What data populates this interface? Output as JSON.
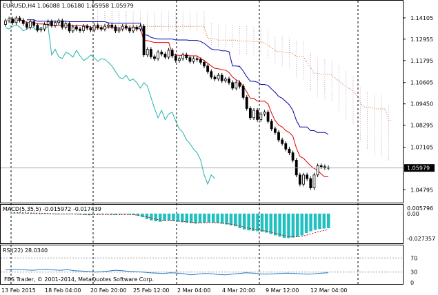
{
  "chart_data": [
    {
      "type": "candlestick",
      "title": "EURUSD,H4  1.06088 1.06180 1.05958 1.05979",
      "symbol": "EURUSD,H4",
      "ohlc_header": [
        "1.06088",
        "1.06180",
        "1.05958",
        "1.05979"
      ],
      "current_price_label": "1.05979",
      "y_tick_labels": [
        "1.14105",
        "1.12955",
        "1.11795",
        "1.10605",
        "1.09450",
        "1.08295",
        "1.07105",
        "1.04795"
      ],
      "ylim": [
        1.0425,
        1.1485
      ],
      "x_tick_labels": [
        "13 Feb 2015",
        "18 Feb 04:00",
        "20 Feb 20:00",
        "25 Feb 12:00",
        "2 Mar 04:00",
        "4 Mar 20:00",
        "9 Mar 12:00",
        "12 Mar 04:00"
      ],
      "grid": "vertical dashed",
      "closes": [
        1.1395,
        1.1405,
        1.1385,
        1.141,
        1.1398,
        1.138,
        1.136,
        1.139,
        1.137,
        1.1345,
        1.135,
        1.1375,
        1.139,
        1.137,
        1.1385,
        1.1395,
        1.136,
        1.138,
        1.134,
        1.1362,
        1.135,
        1.1342,
        1.1365,
        1.1355,
        1.1345,
        1.137,
        1.1358,
        1.135,
        1.1365,
        1.1372,
        1.1362,
        1.134,
        1.135,
        1.1365,
        1.1355,
        1.134,
        1.136,
        1.135,
        1.1365,
        1.121,
        1.124,
        1.12,
        1.119,
        1.1225,
        1.1215,
        1.1198,
        1.1235,
        1.1205,
        1.118,
        1.119,
        1.121,
        1.1195,
        1.1175,
        1.119,
        1.1185,
        1.117,
        1.115,
        1.112,
        1.109,
        1.108,
        1.11,
        1.107,
        1.108,
        1.106,
        1.103,
        1.106,
        1.104,
        1.098,
        1.092,
        1.087,
        1.091,
        1.086,
        1.089,
        1.09,
        1.085,
        1.081,
        1.079,
        1.075,
        1.073,
        1.07,
        1.068,
        1.064,
        1.056,
        1.051,
        1.056,
        1.054,
        1.049,
        1.056,
        1.061,
        1.0605,
        1.06,
        1.0598
      ],
      "series": [
        {
          "name": "Ichimoku Tenkan-sen",
          "color": "#ff0000"
        },
        {
          "name": "Ichimoku Kijun-sen",
          "color": "#0000aa"
        },
        {
          "name": "Ichimoku Chikou Span",
          "color": "#20b2aa"
        },
        {
          "name": "Ichimoku Senkou Span B",
          "color": "#d2691e"
        },
        {
          "name": "Ichimoku Kumo",
          "color": "#a05aa0"
        }
      ]
    },
    {
      "type": "bar",
      "label": "MACD(5,35,5) -0.015972 -0.017439",
      "y_tick_labels": [
        "0.005796",
        "0.00",
        "-0.027357"
      ],
      "ylim": [
        -0.0305,
        0.0075
      ],
      "macd": [
        0.001,
        0.0008,
        0.0005,
        0.0006,
        0.0004,
        0.0003,
        0.0,
        0.0002,
        -0.0005,
        -0.0008,
        -0.001,
        -0.0006,
        -0.0003,
        -0.0005,
        -0.0008,
        -0.0012,
        -0.0015,
        -0.0018,
        -0.0012,
        -0.001,
        -0.0008,
        -0.001,
        -0.0012,
        -0.0015,
        -0.001,
        -0.0008,
        -0.0012,
        -0.0015,
        -0.0025,
        -0.004,
        -0.006,
        -0.0075,
        -0.0085,
        -0.009,
        -0.008,
        -0.0078,
        -0.0082,
        -0.009,
        -0.0095,
        -0.01,
        -0.0105,
        -0.011,
        -0.0105,
        -0.01,
        -0.0098,
        -0.01,
        -0.0105,
        -0.0112,
        -0.012,
        -0.013,
        -0.014,
        -0.016,
        -0.0175,
        -0.0185,
        -0.019,
        -0.0195,
        -0.02,
        -0.021,
        -0.0225,
        -0.024,
        -0.0255,
        -0.0268,
        -0.027,
        -0.0265,
        -0.0255,
        -0.024,
        -0.0215,
        -0.0195,
        -0.018,
        -0.017,
        -0.0165,
        -0.016
      ],
      "signal_color": "#cc0000",
      "hist_color": "#20c0c0"
    },
    {
      "type": "line",
      "label": "RSI(22) 28.0340",
      "y_tick_labels": [
        "70",
        "30",
        "0"
      ],
      "ylim": [
        0,
        100
      ],
      "levels": [
        70,
        30
      ],
      "rsi": [
        36,
        38,
        37,
        36,
        35,
        37,
        38,
        36,
        35,
        37,
        34,
        33,
        32,
        30,
        31,
        33,
        35,
        34,
        32,
        31,
        30,
        28,
        27,
        26,
        28,
        27,
        25,
        22,
        24,
        26,
        25,
        23,
        22,
        24,
        26,
        28,
        27,
        25,
        24,
        25,
        26,
        27,
        26,
        25,
        24,
        25,
        27,
        28
      ],
      "line_color": "#1e78c8"
    }
  ],
  "footer": {
    "copyright": "FBS Trader, © 2001-2014, MetaQuotes Software Corp."
  }
}
